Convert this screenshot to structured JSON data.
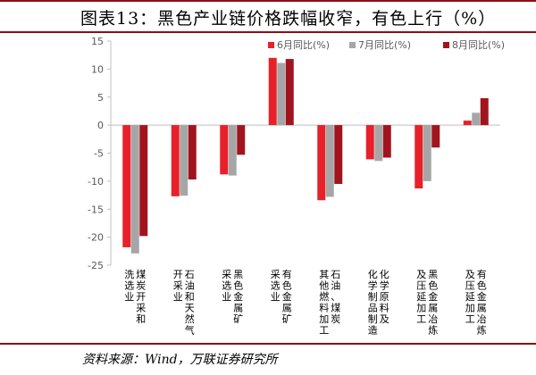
{
  "header": {
    "title": "图表13：黑色产业链价格跌幅收窄，有色上行（%）",
    "source": "资料来源：Wind，万联证券研究所"
  },
  "chart_data": {
    "type": "bar",
    "categories": [
      "煤炭开采和洗选业",
      "石油和天然气开采业",
      "黑色金属矿采选业",
      "有色金属矿采选业",
      "石油、煤炭及其他燃料加工",
      "化学原料及化学制品制造",
      "黑色金属冶炼及压延加工",
      "有色金属冶炼及压延加工"
    ],
    "category_label_columns": [
      [
        "煤炭开采和",
        "洗选业"
      ],
      [
        "石油和天然气",
        "开采业"
      ],
      [
        "黑色金属矿",
        "采选业"
      ],
      [
        "有色金属矿",
        "采选业"
      ],
      [
        "石油、煤炭",
        "其他燃料加工"
      ],
      [
        "化学原料及",
        "化学制品制造"
      ],
      [
        "黑色金属冶炼",
        "及压延加工"
      ],
      [
        "有色金属冶炼",
        "及压延加工"
      ]
    ],
    "series": [
      {
        "name": "6月同比(%)",
        "color": "#e8202a",
        "values": [
          -21.8,
          -12.7,
          -8.8,
          12.0,
          -13.4,
          -6.1,
          -11.3,
          0.8
        ]
      },
      {
        "name": "7月同比(%)",
        "color": "#a6a6a6",
        "values": [
          -22.9,
          -12.6,
          -9.0,
          11.1,
          -12.8,
          -6.4,
          -10.0,
          2.2
        ]
      },
      {
        "name": "8月同比(%)",
        "color": "#a1141e",
        "values": [
          -19.8,
          -9.7,
          -5.3,
          11.8,
          -10.5,
          -5.8,
          -4.0,
          4.8
        ]
      }
    ],
    "y_ticks": [
      "15",
      "10",
      "5",
      "0",
      "-5",
      "-10",
      "-15",
      "-20",
      "-25"
    ],
    "ylim": [
      -25,
      15
    ],
    "legend_position": "top-right",
    "grid": false
  }
}
